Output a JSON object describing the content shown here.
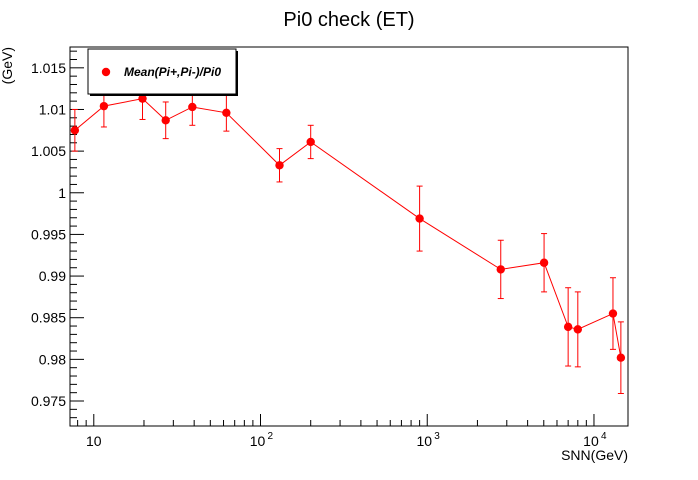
{
  "chart_data": {
    "type": "scatter",
    "title": "Pi0 check (ET)",
    "xlabel": "SNN(GeV)",
    "ylabel": "(GeV)",
    "x_scale": "log",
    "xlim": [
      7.2,
      16000
    ],
    "ylim": [
      0.972,
      1.0175
    ],
    "y_ticks": [
      0.975,
      0.98,
      0.985,
      0.99,
      0.995,
      1,
      1.005,
      1.01,
      1.015
    ],
    "y_tick_labels": [
      "0.975",
      "0.98",
      "0.985",
      "0.99",
      "0.995",
      "1",
      "1.005",
      "1.01",
      "1.015"
    ],
    "x_tick_labels": [
      {
        "value": 10,
        "base": "10",
        "exp": ""
      },
      {
        "value": 100,
        "base": "10",
        "exp": "2"
      },
      {
        "value": 1000,
        "base": "10",
        "exp": "3"
      },
      {
        "value": 10000,
        "base": "10",
        "exp": "4"
      }
    ],
    "grid": false,
    "legend_position": "top-left",
    "series": [
      {
        "name": "Mean(Pi+,Pi-)/Pi0",
        "color": "#ff0000",
        "points": [
          {
            "x": 7.7,
            "y": 1.0075,
            "err": 0.0025
          },
          {
            "x": 11.5,
            "y": 1.0104,
            "err": 0.0025
          },
          {
            "x": 19.6,
            "y": 1.0113,
            "err": 0.0025
          },
          {
            "x": 27,
            "y": 1.0087,
            "err": 0.0022
          },
          {
            "x": 39,
            "y": 1.0103,
            "err": 0.0022
          },
          {
            "x": 62.4,
            "y": 1.0096,
            "err": 0.0022
          },
          {
            "x": 130,
            "y": 1.0033,
            "err": 0.002
          },
          {
            "x": 200,
            "y": 1.0061,
            "err": 0.002
          },
          {
            "x": 900,
            "y": 0.9969,
            "err": 0.0039
          },
          {
            "x": 2760,
            "y": 0.9908,
            "err": 0.0035
          },
          {
            "x": 5020,
            "y": 0.9916,
            "err": 0.0035
          },
          {
            "x": 7000,
            "y": 0.9839,
            "err": 0.0047
          },
          {
            "x": 8000,
            "y": 0.9836,
            "err": 0.0045
          },
          {
            "x": 13000,
            "y": 0.9855,
            "err": 0.0043
          },
          {
            "x": 14500,
            "y": 0.9802,
            "err": 0.0043
          }
        ]
      }
    ]
  }
}
